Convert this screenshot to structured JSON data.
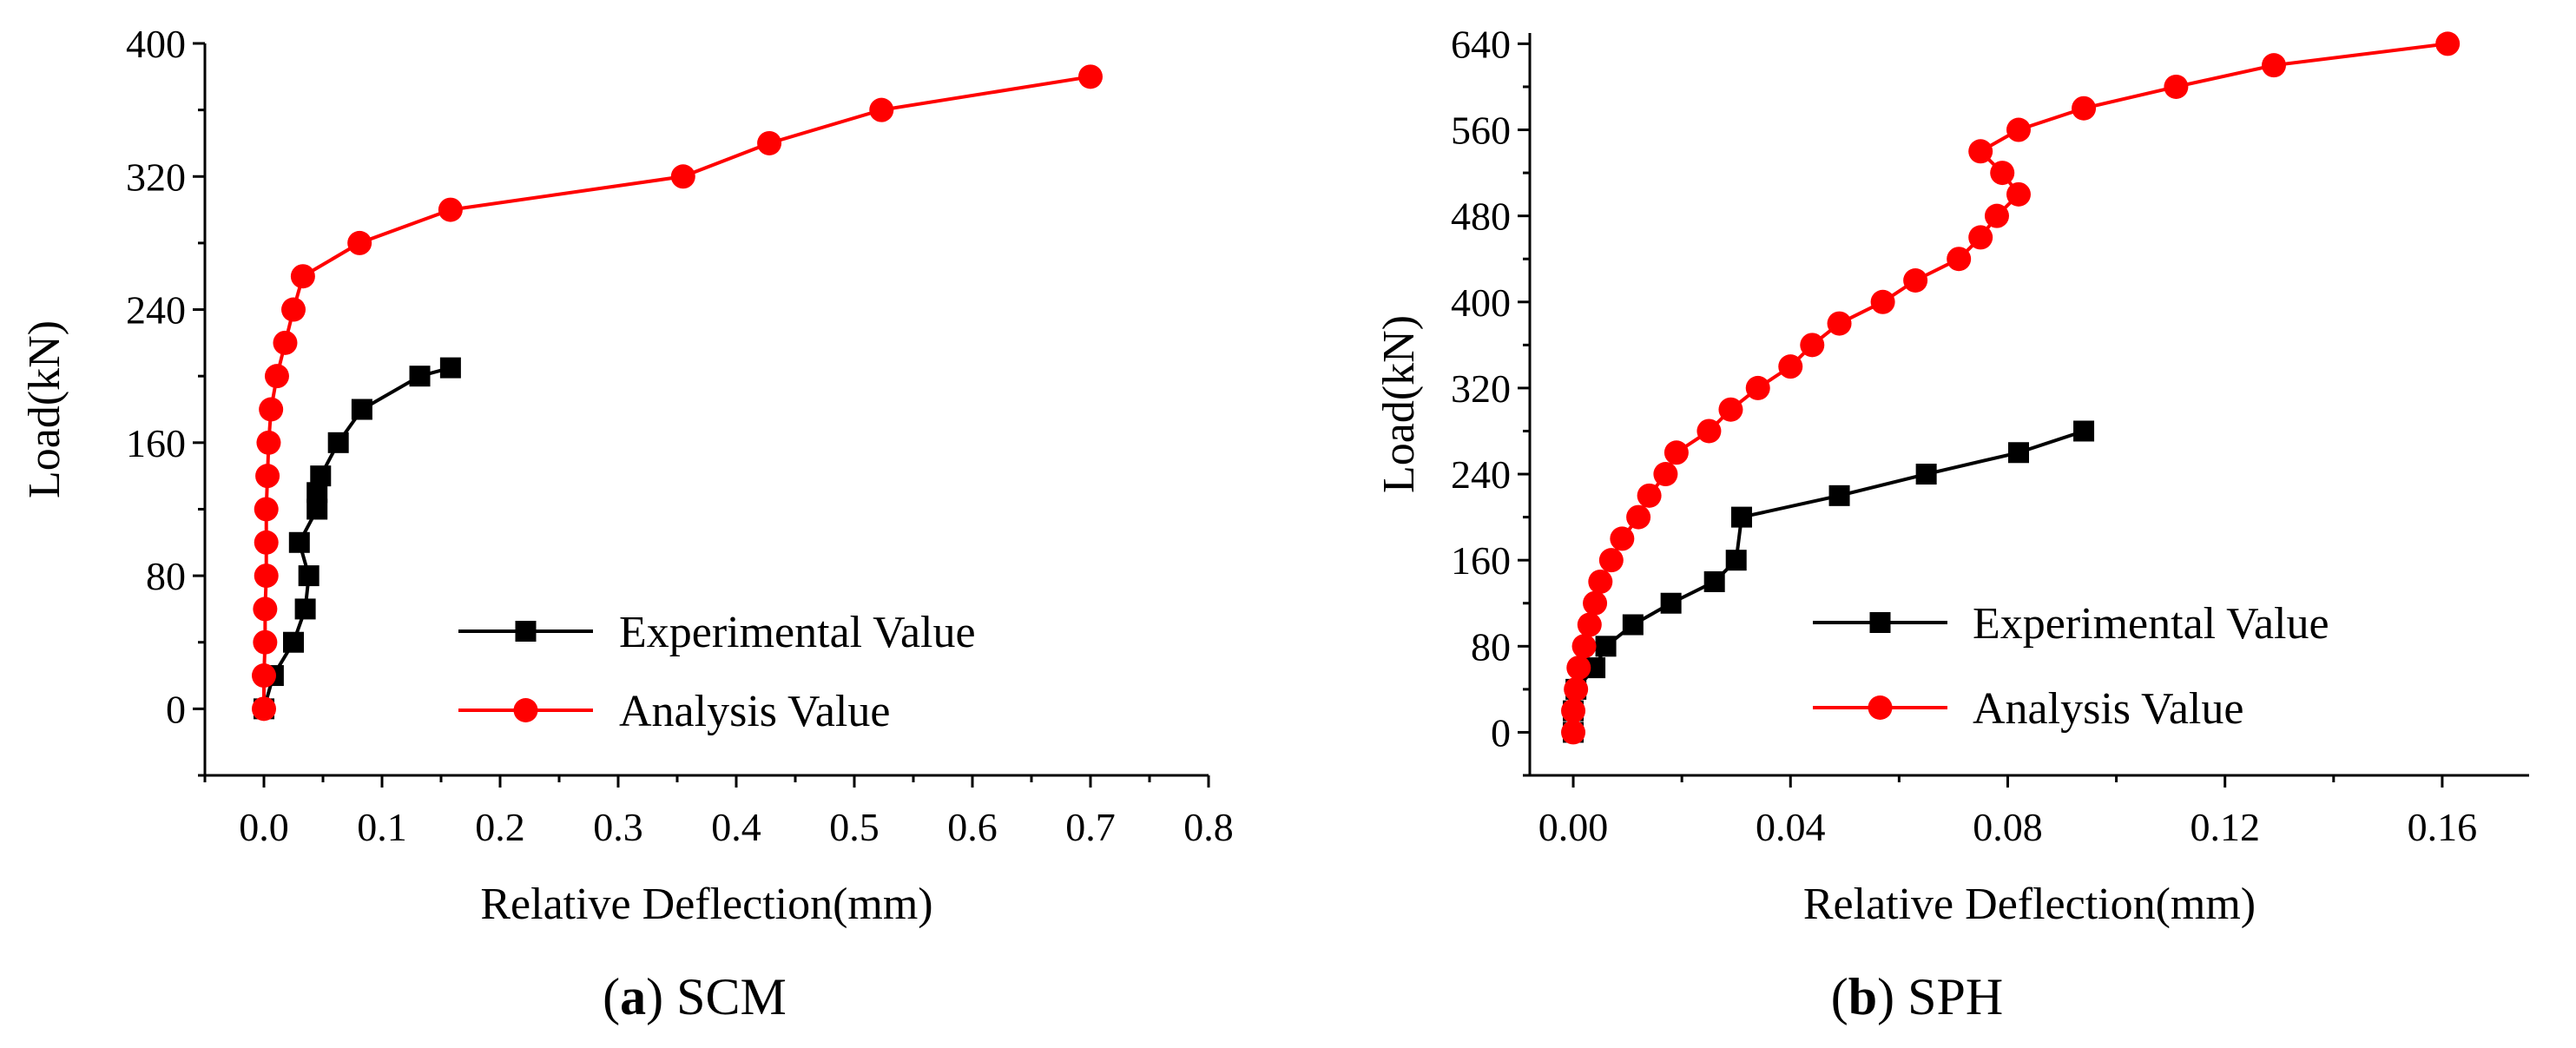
{
  "figure": "SCM / SPH load vs relative deflection",
  "chart_data": [
    {
      "type": "line",
      "id": "a",
      "caption_letter": "a",
      "caption_name": "SCM",
      "xlabel": "Relative Deflection(mm)",
      "ylabel": "Load(kN)",
      "xlim": [
        -0.05,
        0.8
      ],
      "ylim": [
        -40,
        400
      ],
      "xticks": [
        0.0,
        0.1,
        0.2,
        0.3,
        0.4,
        0.5,
        0.6,
        0.7,
        0.8
      ],
      "xtick_labels": [
        "0.0",
        "0.1",
        "0.2",
        "0.3",
        "0.4",
        "0.5",
        "0.6",
        "0.7",
        "0.8"
      ],
      "yticks": [
        0,
        80,
        160,
        240,
        320,
        400
      ],
      "ytick_labels": [
        "0",
        "80",
        "160",
        "240",
        "320",
        "400"
      ],
      "legend_position": "bottom-right",
      "series": [
        {
          "name": "Experimental Value",
          "color": "#000000",
          "marker": "square",
          "points": [
            [
              0.0,
              0
            ],
            [
              0.008,
              20
            ],
            [
              0.025,
              40
            ],
            [
              0.035,
              60
            ],
            [
              0.038,
              80
            ],
            [
              0.03,
              100
            ],
            [
              0.045,
              120
            ],
            [
              0.045,
              130
            ],
            [
              0.048,
              140
            ],
            [
              0.063,
              160
            ],
            [
              0.083,
              180
            ],
            [
              0.132,
              200
            ],
            [
              0.158,
              205
            ]
          ]
        },
        {
          "name": "Analysis Value",
          "color": "#ff0000",
          "marker": "circle",
          "points": [
            [
              0.0,
              0
            ],
            [
              0.0,
              20
            ],
            [
              0.001,
              40
            ],
            [
              0.001,
              60
            ],
            [
              0.002,
              80
            ],
            [
              0.002,
              100
            ],
            [
              0.002,
              120
            ],
            [
              0.003,
              140
            ],
            [
              0.004,
              160
            ],
            [
              0.006,
              180
            ],
            [
              0.011,
              200
            ],
            [
              0.018,
              220
            ],
            [
              0.025,
              240
            ],
            [
              0.033,
              260
            ],
            [
              0.081,
              280
            ],
            [
              0.158,
              300
            ],
            [
              0.355,
              320
            ],
            [
              0.428,
              340
            ],
            [
              0.523,
              360
            ],
            [
              0.7,
              380
            ]
          ]
        }
      ]
    },
    {
      "type": "line",
      "id": "b",
      "caption_letter": "b",
      "caption_name": "SPH",
      "xlabel": "Relative Deflection(mm)",
      "ylabel": "Load(kN)",
      "xlim": [
        -0.008,
        0.176
      ],
      "ylim": [
        -40,
        650
      ],
      "xticks": [
        0.0,
        0.04,
        0.08,
        0.12,
        0.16
      ],
      "xtick_labels": [
        "0.00",
        "0.04",
        "0.08",
        "0.12",
        "0.16"
      ],
      "yticks": [
        0,
        80,
        160,
        240,
        320,
        400,
        480,
        560,
        640
      ],
      "ytick_labels": [
        "0",
        "80",
        "160",
        "240",
        "320",
        "400",
        "480",
        "560",
        "640"
      ],
      "legend_position": "bottom-right",
      "series": [
        {
          "name": "Experimental Value",
          "color": "#000000",
          "marker": "square",
          "points": [
            [
              0.0,
              0
            ],
            [
              0.0,
              20
            ],
            [
              0.0005,
              40
            ],
            [
              0.004,
              60
            ],
            [
              0.006,
              80
            ],
            [
              0.011,
              100
            ],
            [
              0.018,
              120
            ],
            [
              0.026,
              140
            ],
            [
              0.03,
              160
            ],
            [
              0.031,
              200
            ],
            [
              0.049,
              220
            ],
            [
              0.065,
              240
            ],
            [
              0.082,
              260
            ],
            [
              0.094,
              280
            ]
          ]
        },
        {
          "name": "Analysis Value",
          "color": "#ff0000",
          "marker": "circle",
          "points": [
            [
              0.0,
              0
            ],
            [
              0.0,
              20
            ],
            [
              0.0005,
              40
            ],
            [
              0.001,
              60
            ],
            [
              0.002,
              80
            ],
            [
              0.003,
              100
            ],
            [
              0.004,
              120
            ],
            [
              0.005,
              140
            ],
            [
              0.007,
              160
            ],
            [
              0.009,
              180
            ],
            [
              0.012,
              200
            ],
            [
              0.014,
              220
            ],
            [
              0.017,
              240
            ],
            [
              0.019,
              260
            ],
            [
              0.025,
              280
            ],
            [
              0.029,
              300
            ],
            [
              0.034,
              320
            ],
            [
              0.04,
              340
            ],
            [
              0.044,
              360
            ],
            [
              0.049,
              380
            ],
            [
              0.057,
              400
            ],
            [
              0.063,
              420
            ],
            [
              0.071,
              440
            ],
            [
              0.075,
              460
            ],
            [
              0.078,
              480
            ],
            [
              0.082,
              500
            ],
            [
              0.079,
              520
            ],
            [
              0.075,
              540
            ],
            [
              0.082,
              560
            ],
            [
              0.094,
              580
            ],
            [
              0.111,
              600
            ],
            [
              0.129,
              620
            ],
            [
              0.161,
              640
            ]
          ]
        }
      ]
    }
  ]
}
